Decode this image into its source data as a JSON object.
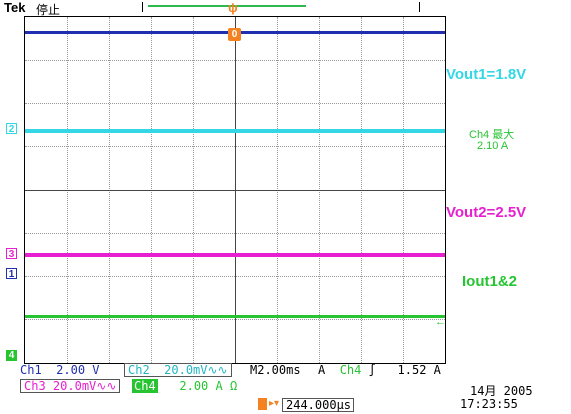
{
  "header": {
    "brand": "Tek",
    "state": "停止"
  },
  "annotations": {
    "vout1": "Vout1=1.8V",
    "ch4_max_label": "Ch4 最大",
    "ch4_max_value": "2.10 A",
    "vout2": "Vout2=2.5V",
    "iout": "Iout1&2"
  },
  "channels": {
    "ch1": {
      "marker": "1",
      "label": "Ch1",
      "scale": "2.00 V"
    },
    "ch2": {
      "marker": "2",
      "label": "Ch2",
      "scale": "20.0mV∿∿"
    },
    "ch3": {
      "marker": "3",
      "label": "Ch3",
      "scale": "20.0mV∿∿"
    },
    "ch4": {
      "marker": "4",
      "label": "Ch4",
      "scale": "2.00 A Ω"
    }
  },
  "timebase": {
    "prefix": "M",
    "value": "2.00ms"
  },
  "trigger": {
    "mode": "A",
    "source": "Ch4",
    "slope": "∫",
    "level": "1.52 A",
    "position": "244.000µs"
  },
  "clock": {
    "date": "14月 2005",
    "time": "17:23:55"
  },
  "colors": {
    "ch1": "#1f2fb0",
    "ch2": "#33d7e6",
    "ch3": "#e61fd0",
    "ch4": "#27c432",
    "trigger": "#f58220"
  }
}
